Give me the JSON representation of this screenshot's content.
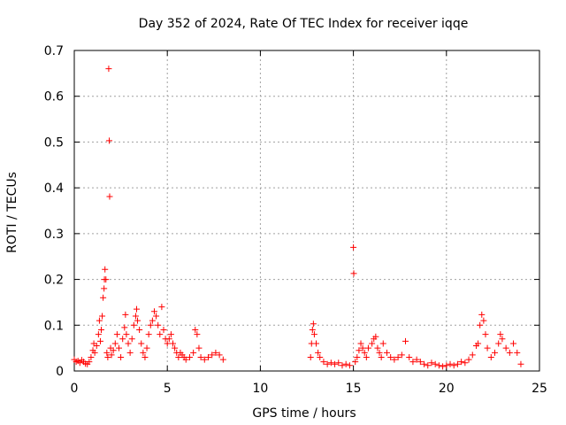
{
  "chart_data": {
    "type": "scatter",
    "title": "Day 352 of 2024, Rate Of TEC Index for receiver iqqe",
    "xlabel": "GPS time / hours",
    "ylabel": "ROTI / TECUs",
    "xlim": [
      0,
      25
    ],
    "ylim": [
      0,
      0.7
    ],
    "xticks": [
      0,
      5,
      10,
      15,
      20,
      25
    ],
    "yticks": [
      0,
      0.1,
      0.2,
      0.3,
      0.4,
      0.5,
      0.6,
      0.7
    ],
    "xtick_labels": [
      "0",
      "5",
      "10",
      "15",
      "20",
      "25"
    ],
    "ytick_labels": [
      "0",
      "0.1",
      "0.2",
      "0.3",
      "0.4",
      "0.5",
      "0.6",
      "0.7"
    ],
    "grid": true,
    "marker": "plus",
    "color": "#ff0000",
    "series": [
      {
        "points": [
          [
            0.0,
            0.025
          ],
          [
            0.1,
            0.02
          ],
          [
            0.2,
            0.022
          ],
          [
            0.3,
            0.018
          ],
          [
            0.4,
            0.024
          ],
          [
            0.5,
            0.02
          ],
          [
            0.6,
            0.016
          ],
          [
            0.7,
            0.015
          ],
          [
            0.8,
            0.02
          ],
          [
            0.9,
            0.03
          ],
          [
            1.0,
            0.045
          ],
          [
            1.05,
            0.06
          ],
          [
            1.1,
            0.04
          ],
          [
            1.2,
            0.055
          ],
          [
            1.3,
            0.08
          ],
          [
            1.35,
            0.11
          ],
          [
            1.4,
            0.065
          ],
          [
            1.45,
            0.09
          ],
          [
            1.5,
            0.12
          ],
          [
            1.55,
            0.16
          ],
          [
            1.6,
            0.18
          ],
          [
            1.62,
            0.2
          ],
          [
            1.65,
            0.222
          ],
          [
            1.7,
            0.2
          ],
          [
            1.75,
            0.04
          ],
          [
            1.8,
            0.03
          ],
          [
            1.85,
            0.66
          ],
          [
            1.88,
            0.503
          ],
          [
            1.9,
            0.381
          ],
          [
            1.95,
            0.05
          ],
          [
            2.0,
            0.035
          ],
          [
            2.1,
            0.045
          ],
          [
            2.2,
            0.06
          ],
          [
            2.3,
            0.08
          ],
          [
            2.4,
            0.05
          ],
          [
            2.5,
            0.03
          ],
          [
            2.6,
            0.07
          ],
          [
            2.7,
            0.095
          ],
          [
            2.75,
            0.123
          ],
          [
            2.8,
            0.08
          ],
          [
            2.9,
            0.06
          ],
          [
            3.0,
            0.04
          ],
          [
            3.1,
            0.07
          ],
          [
            3.2,
            0.1
          ],
          [
            3.3,
            0.12
          ],
          [
            3.35,
            0.135
          ],
          [
            3.4,
            0.11
          ],
          [
            3.5,
            0.09
          ],
          [
            3.6,
            0.06
          ],
          [
            3.7,
            0.04
          ],
          [
            3.8,
            0.03
          ],
          [
            3.9,
            0.05
          ],
          [
            4.0,
            0.08
          ],
          [
            4.1,
            0.1
          ],
          [
            4.2,
            0.11
          ],
          [
            4.3,
            0.13
          ],
          [
            4.4,
            0.12
          ],
          [
            4.5,
            0.1
          ],
          [
            4.6,
            0.08
          ],
          [
            4.7,
            0.14
          ],
          [
            4.8,
            0.09
          ],
          [
            4.9,
            0.07
          ],
          [
            5.0,
            0.06
          ],
          [
            5.1,
            0.07
          ],
          [
            5.2,
            0.08
          ],
          [
            5.3,
            0.06
          ],
          [
            5.4,
            0.05
          ],
          [
            5.5,
            0.04
          ],
          [
            5.6,
            0.03
          ],
          [
            5.7,
            0.04
          ],
          [
            5.8,
            0.035
          ],
          [
            5.9,
            0.03
          ],
          [
            6.0,
            0.025
          ],
          [
            6.2,
            0.03
          ],
          [
            6.4,
            0.04
          ],
          [
            6.5,
            0.09
          ],
          [
            6.6,
            0.08
          ],
          [
            6.7,
            0.05
          ],
          [
            6.8,
            0.03
          ],
          [
            7.0,
            0.025
          ],
          [
            7.2,
            0.03
          ],
          [
            7.4,
            0.035
          ],
          [
            7.6,
            0.04
          ],
          [
            7.8,
            0.035
          ],
          [
            8.0,
            0.025
          ],
          [
            12.7,
            0.03
          ],
          [
            12.75,
            0.06
          ],
          [
            12.8,
            0.09
          ],
          [
            12.85,
            0.103
          ],
          [
            12.9,
            0.08
          ],
          [
            13.0,
            0.06
          ],
          [
            13.1,
            0.04
          ],
          [
            13.2,
            0.03
          ],
          [
            13.4,
            0.02
          ],
          [
            13.6,
            0.015
          ],
          [
            13.8,
            0.018
          ],
          [
            14.0,
            0.015
          ],
          [
            14.2,
            0.018
          ],
          [
            14.4,
            0.012
          ],
          [
            14.6,
            0.015
          ],
          [
            14.8,
            0.012
          ],
          [
            15.0,
            0.27
          ],
          [
            15.02,
            0.213
          ],
          [
            15.1,
            0.02
          ],
          [
            15.2,
            0.03
          ],
          [
            15.3,
            0.045
          ],
          [
            15.4,
            0.06
          ],
          [
            15.5,
            0.05
          ],
          [
            15.6,
            0.04
          ],
          [
            15.7,
            0.03
          ],
          [
            15.8,
            0.05
          ],
          [
            16.0,
            0.06
          ],
          [
            16.1,
            0.07
          ],
          [
            16.2,
            0.075
          ],
          [
            16.3,
            0.05
          ],
          [
            16.4,
            0.04
          ],
          [
            16.5,
            0.03
          ],
          [
            16.6,
            0.06
          ],
          [
            16.8,
            0.04
          ],
          [
            17.0,
            0.03
          ],
          [
            17.2,
            0.025
          ],
          [
            17.4,
            0.03
          ],
          [
            17.6,
            0.035
          ],
          [
            17.8,
            0.065
          ],
          [
            18.0,
            0.03
          ],
          [
            18.2,
            0.02
          ],
          [
            18.4,
            0.025
          ],
          [
            18.6,
            0.02
          ],
          [
            18.8,
            0.015
          ],
          [
            19.0,
            0.012
          ],
          [
            19.2,
            0.018
          ],
          [
            19.4,
            0.015
          ],
          [
            19.6,
            0.012
          ],
          [
            19.8,
            0.01
          ],
          [
            20.0,
            0.012
          ],
          [
            20.2,
            0.015
          ],
          [
            20.4,
            0.012
          ],
          [
            20.6,
            0.015
          ],
          [
            20.8,
            0.02
          ],
          [
            21.0,
            0.018
          ],
          [
            21.2,
            0.025
          ],
          [
            21.4,
            0.035
          ],
          [
            21.6,
            0.055
          ],
          [
            21.7,
            0.06
          ],
          [
            21.8,
            0.1
          ],
          [
            21.9,
            0.123
          ],
          [
            22.0,
            0.11
          ],
          [
            22.1,
            0.08
          ],
          [
            22.2,
            0.05
          ],
          [
            22.4,
            0.03
          ],
          [
            22.6,
            0.04
          ],
          [
            22.8,
            0.06
          ],
          [
            22.9,
            0.08
          ],
          [
            23.0,
            0.07
          ],
          [
            23.2,
            0.05
          ],
          [
            23.4,
            0.04
          ],
          [
            23.6,
            0.06
          ],
          [
            23.8,
            0.04
          ],
          [
            24.0,
            0.015
          ]
        ]
      }
    ]
  }
}
